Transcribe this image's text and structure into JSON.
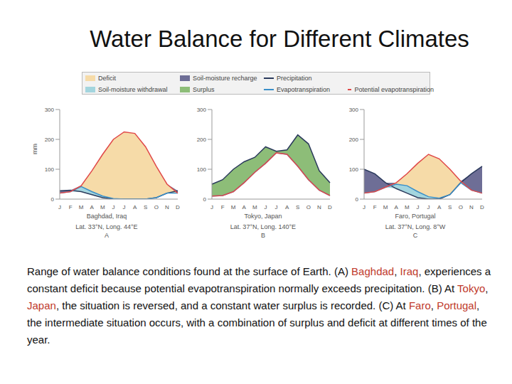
{
  "title": "Water Balance for Different Climates",
  "legend_items": [
    {
      "name": "Deficit",
      "color": "#f6dba8",
      "marker": "swatch"
    },
    {
      "name": "Soil-moisture recharge",
      "color": "#6e6e96",
      "marker": "swatch"
    },
    {
      "name": "Precipitation",
      "color": "#2b3a5c",
      "marker": "line"
    },
    {
      "name": "Soil-moisture withdrawal",
      "color": "#a3d5de",
      "marker": "swatch"
    },
    {
      "name": "Surplus",
      "color": "#8dbd78",
      "marker": "swatch"
    },
    {
      "name": "Evapotranspiration",
      "color": "#3a8fc8",
      "marker": "line"
    },
    {
      "name": "Potential evapotranspiration",
      "color": "#e04848",
      "marker": "line"
    }
  ],
  "chart_data": [
    {
      "type": "line",
      "title": "Baghdad, Iraq",
      "subtitle": "Lat. 33°N, Long. 44°E",
      "letter": "A",
      "ylabel": "mm",
      "categories": [
        "J",
        "F",
        "M",
        "A",
        "M",
        "J",
        "J",
        "A",
        "S",
        "O",
        "N",
        "D"
      ],
      "series": [
        {
          "name": "Precipitation",
          "color": "#2b3a5c",
          "values": [
            28,
            30,
            25,
            15,
            5,
            0,
            0,
            0,
            0,
            5,
            20,
            28
          ]
        },
        {
          "name": "Evapotranspiration",
          "color": "#3a8fc8",
          "values": [
            20,
            25,
            42,
            25,
            10,
            2,
            0,
            0,
            0,
            5,
            20,
            20
          ]
        },
        {
          "name": "Potential evapotranspiration",
          "color": "#e04848",
          "values": [
            20,
            25,
            45,
            95,
            150,
            200,
            225,
            220,
            175,
            110,
            50,
            20
          ]
        }
      ],
      "ylim": [
        0,
        300
      ],
      "yticks": [
        0,
        100,
        200,
        300
      ]
    },
    {
      "type": "line",
      "title": "Tokyo, Japan",
      "subtitle": "Lat. 37°N, Long. 140°E",
      "letter": "B",
      "categories": [
        "J",
        "F",
        "M",
        "A",
        "M",
        "J",
        "J",
        "A",
        "S",
        "O",
        "N",
        "D"
      ],
      "series": [
        {
          "name": "Precipitation",
          "color": "#2b3a5c",
          "values": [
            50,
            65,
            100,
            125,
            140,
            175,
            160,
            165,
            215,
            185,
            95,
            55
          ]
        },
        {
          "name": "Evapotranspiration",
          "color": "#3a8fc8",
          "values": [
            10,
            12,
            25,
            55,
            90,
            120,
            155,
            150,
            110,
            65,
            30,
            12
          ]
        },
        {
          "name": "Potential evapotranspiration",
          "color": "#e04848",
          "values": [
            10,
            12,
            25,
            55,
            90,
            120,
            155,
            150,
            110,
            65,
            30,
            12
          ]
        }
      ],
      "ylim": [
        0,
        300
      ],
      "yticks": [
        0,
        100,
        200,
        300
      ]
    },
    {
      "type": "line",
      "title": "Faro, Portugal",
      "subtitle": "Lat. 37°N, Long. 8°W",
      "letter": "C",
      "categories": [
        "J",
        "F",
        "M",
        "A",
        "M",
        "J",
        "J",
        "A",
        "S",
        "O",
        "N",
        "D"
      ],
      "series": [
        {
          "name": "Precipitation",
          "color": "#2b3a5c",
          "values": [
            100,
            85,
            55,
            35,
            20,
            5,
            0,
            0,
            15,
            55,
            85,
            110
          ]
        },
        {
          "name": "Evapotranspiration",
          "color": "#3a8fc8",
          "values": [
            20,
            25,
            40,
            50,
            45,
            25,
            8,
            3,
            15,
            55,
            30,
            20
          ]
        },
        {
          "name": "Potential evapotranspiration",
          "color": "#e04848",
          "values": [
            20,
            25,
            40,
            55,
            85,
            120,
            150,
            135,
            100,
            60,
            30,
            20
          ]
        }
      ],
      "ylim": [
        0,
        300
      ],
      "yticks": [
        0,
        100,
        200,
        300
      ]
    }
  ],
  "caption": [
    {
      "text": "Range of water balance conditions found at the surface of Earth. (A) "
    },
    {
      "text": "Baghdad",
      "color": "#c0392b"
    },
    {
      "text": ", "
    },
    {
      "text": "Iraq",
      "color": "#c0392b"
    },
    {
      "text": ", experiences a constant deficit because potential evapotranspiration normally exceeds precipitation. (B) At "
    },
    {
      "text": "Tokyo",
      "color": "#c0392b"
    },
    {
      "text": ", "
    },
    {
      "text": "Japan",
      "color": "#c0392b"
    },
    {
      "text": ", the situation is reversed, and a constant water surplus is recorded. (C) At "
    },
    {
      "text": "Faro",
      "color": "#c0392b"
    },
    {
      "text": ", "
    },
    {
      "text": "Portugal",
      "color": "#c0392b"
    },
    {
      "text": ", the intermediate situation occurs, with a combination of surplus and deficit at different times of the year."
    }
  ]
}
